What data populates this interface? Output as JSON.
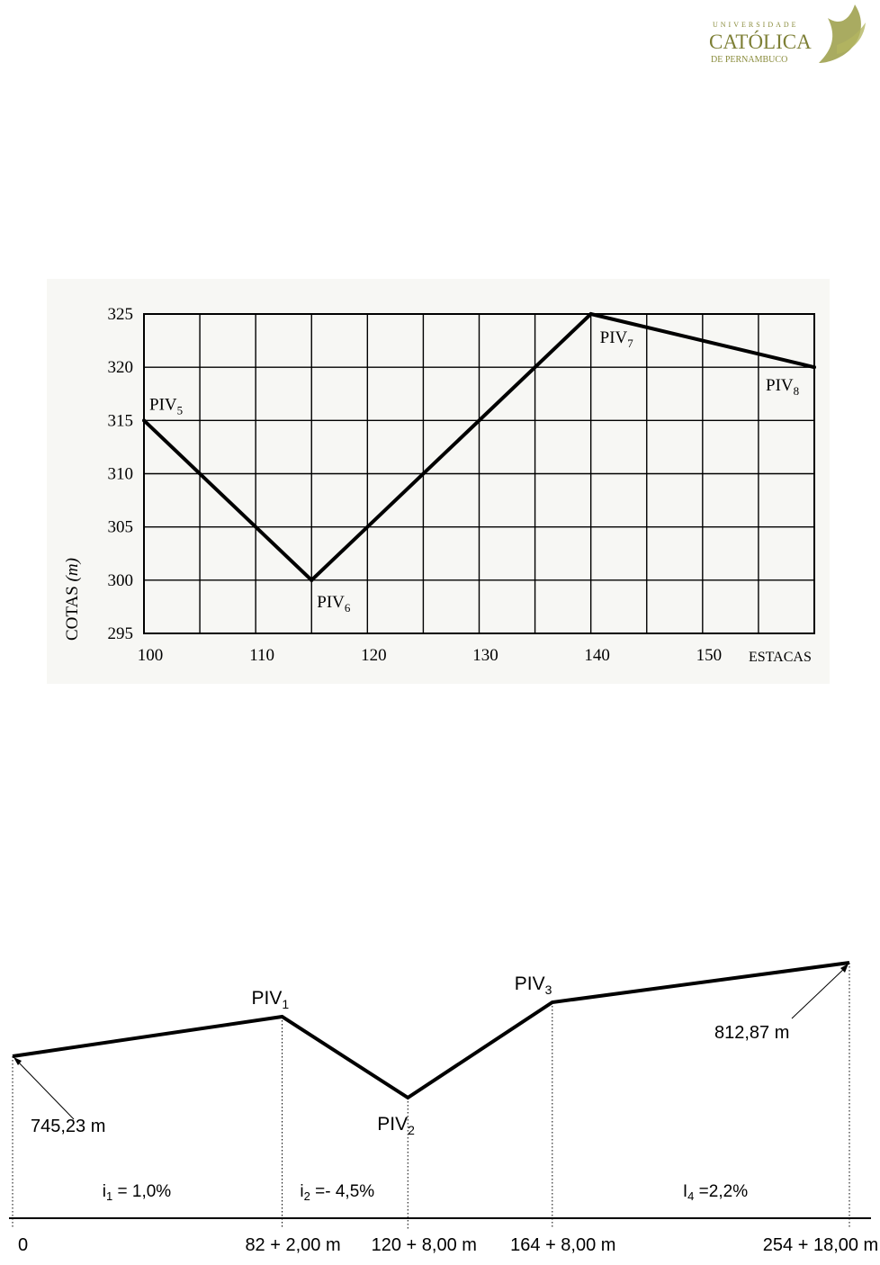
{
  "logo": {
    "line1": "UNIVERSIDADE",
    "line2": "CATÓLICA",
    "line3": "DE PERNAMBUCO",
    "color": "#8a8c3c",
    "icon": "dove-icon"
  },
  "chart_data": [
    {
      "type": "line",
      "ylabel": "COTAS",
      "ylabel_unit": "(m)",
      "xlabel": "ESTACAS",
      "xlim": [
        100,
        160
      ],
      "ylim": [
        295,
        325
      ],
      "x_ticks": [
        100,
        110,
        120,
        130,
        140,
        150
      ],
      "x_tick_labels": [
        "100",
        "110",
        "120",
        "130",
        "140",
        "150"
      ],
      "y_ticks": [
        295,
        300,
        305,
        310,
        315,
        320,
        325
      ],
      "y_tick_labels": [
        "295",
        "300",
        "305",
        "310",
        "315",
        "320",
        "325"
      ],
      "x_grid_step": 5,
      "grid": true,
      "series": [
        {
          "points": [
            {
              "x": 100,
              "y": 315,
              "label": "PIV",
              "sub": "5"
            },
            {
              "x": 115,
              "y": 300,
              "label": "PIV",
              "sub": "6"
            },
            {
              "x": 140,
              "y": 325,
              "label": "PIV",
              "sub": "7"
            },
            {
              "x": 160,
              "y": 320,
              "label": "PIV",
              "sub": "8"
            }
          ]
        }
      ]
    },
    {
      "type": "line",
      "profile": [
        {
          "x": 0,
          "label": "",
          "sub": ""
        },
        {
          "x": 82.1,
          "label": "PIV",
          "sub": "1"
        },
        {
          "x": 120.4,
          "label": "PIV",
          "sub": "2"
        },
        {
          "x": 164.4,
          "label": "PIV",
          "sub": "3"
        },
        {
          "x": 254.9,
          "label": "",
          "sub": ""
        }
      ],
      "station_labels": [
        "0",
        "82 + 2,00 m",
        "120 + 8,00 m",
        "164 + 8,00 m",
        "254 + 18,00 m"
      ],
      "start_elevation": "745,23 m",
      "end_elevation": "812,87 m",
      "grades": [
        {
          "pre": "i",
          "sub": "1",
          "text": " = 1,0%"
        },
        {
          "pre": "i",
          "sub": "2",
          "text": " =- 4,5%"
        },
        {
          "pre": "",
          "sub": "",
          "text": ""
        },
        {
          "pre": "I",
          "sub": "4",
          "text": " =2,2%"
        }
      ]
    }
  ]
}
